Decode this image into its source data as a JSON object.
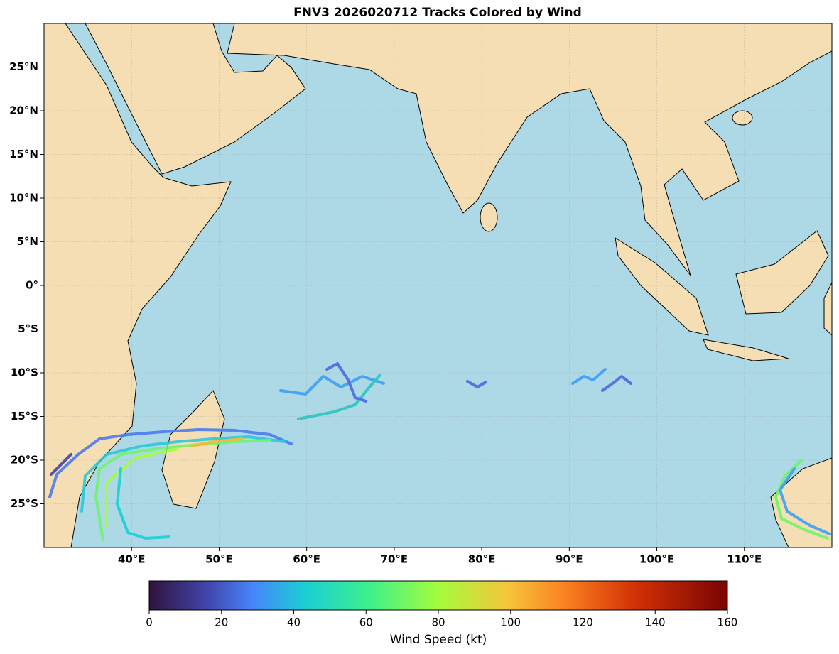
{
  "chart_data": {
    "type": "map",
    "title": "FNV3 2026020712 Tracks Colored by Wind",
    "xlim": [
      30,
      120
    ],
    "xticks": [
      {
        "value": 40,
        "label": "40°E"
      },
      {
        "value": 50,
        "label": "50°E"
      },
      {
        "value": 60,
        "label": "60°E"
      },
      {
        "value": 70,
        "label": "70°E"
      },
      {
        "value": 80,
        "label": "80°E"
      },
      {
        "value": 90,
        "label": "90°E"
      },
      {
        "value": 100,
        "label": "100°E"
      },
      {
        "value": 110,
        "label": "110°E"
      }
    ],
    "ylim": [
      -30,
      30
    ],
    "yticks": [
      {
        "value": 25,
        "label": "25°N"
      },
      {
        "value": 20,
        "label": "20°N"
      },
      {
        "value": 15,
        "label": "15°N"
      },
      {
        "value": 10,
        "label": "10°N"
      },
      {
        "value": 5,
        "label": "5°N"
      },
      {
        "value": 0,
        "label": "0°"
      },
      {
        "value": -5,
        "label": "5°S"
      },
      {
        "value": -10,
        "label": "10°S"
      },
      {
        "value": -15,
        "label": "15°S"
      },
      {
        "value": -20,
        "label": "20°S"
      },
      {
        "value": -25,
        "label": "25°S"
      }
    ],
    "grid": true,
    "colorbar": {
      "label": "Wind Speed (kt)",
      "lim": [
        0,
        160
      ],
      "ticks": [
        0,
        20,
        40,
        60,
        80,
        100,
        120,
        140,
        160
      ]
    }
  }
}
